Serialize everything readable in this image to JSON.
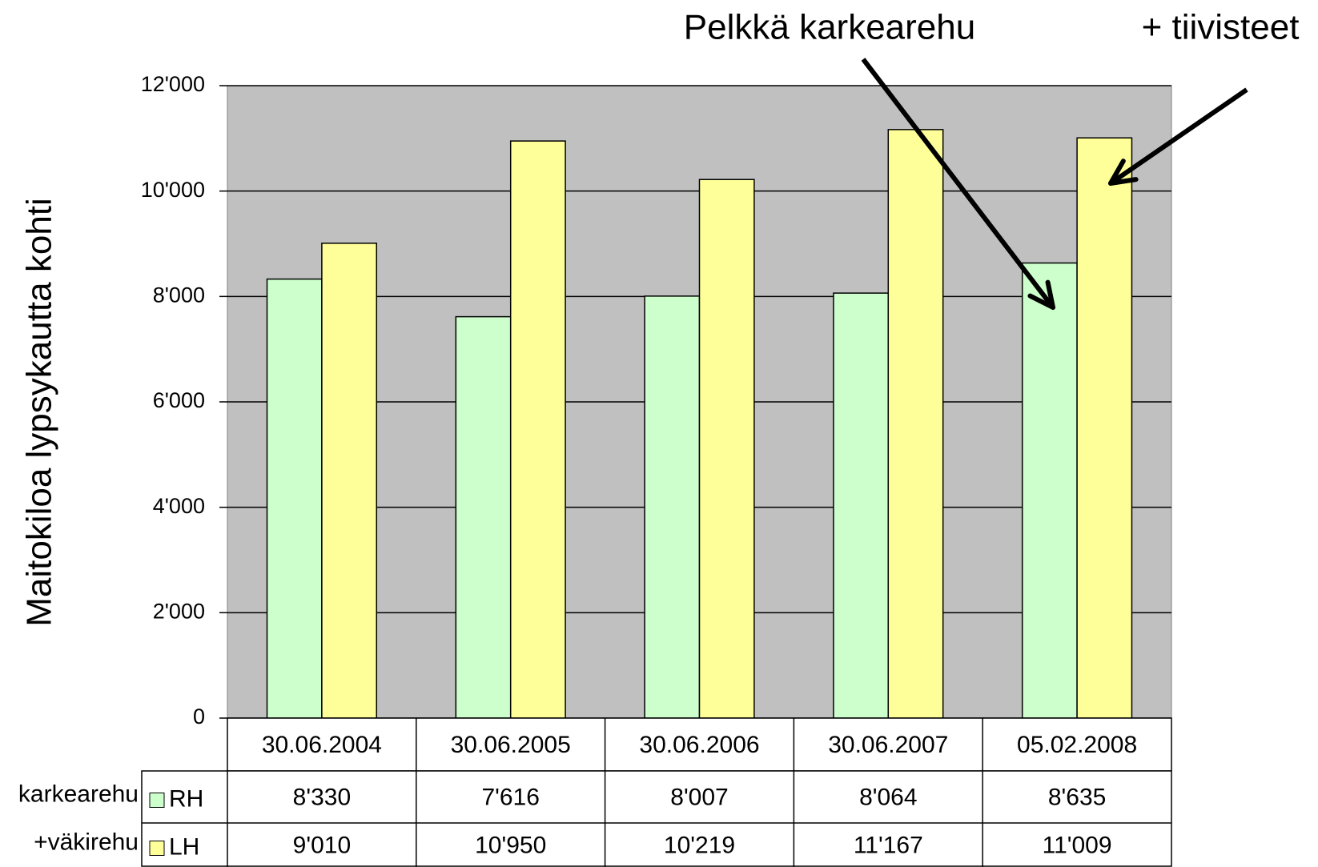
{
  "chart_data": {
    "type": "bar",
    "y_label": "Maitokiloa lypsykautta kohti",
    "annotations": [
      "Pelkkä karkearehu",
      "+ tiivisteet"
    ],
    "row_labels": [
      "karkearehu",
      "+väkirehu"
    ],
    "categories": [
      "30.06.2004",
      "30.06.2005",
      "30.06.2006",
      "30.06.2007",
      "05.02.2008"
    ],
    "series": [
      {
        "name": "RH",
        "color": "#ccffcc",
        "values": [
          8330,
          7616,
          8007,
          8064,
          8635
        ],
        "value_labels": [
          "8'330",
          "7'616",
          "8'007",
          "8'064",
          "8'635"
        ]
      },
      {
        "name": "LH",
        "color": "#ffff99",
        "values": [
          9010,
          10950,
          10219,
          11167,
          11009
        ],
        "value_labels": [
          "9'010",
          "10'950",
          "10'219",
          "11'167",
          "11'009"
        ]
      }
    ],
    "ylim": [
      0,
      12000
    ],
    "yticks": [
      0,
      {
        "value": 2000,
        "label": "2'000"
      },
      {
        "value": 4000,
        "label": "4'000"
      },
      {
        "value": 6000,
        "label": "6'000"
      },
      {
        "value": 8000,
        "label": "8'000"
      },
      {
        "value": 10000,
        "label": "10'000"
      },
      {
        "value": 12000,
        "label": "12'000"
      }
    ],
    "plot_background": "#c0c0c0",
    "grid": true
  }
}
